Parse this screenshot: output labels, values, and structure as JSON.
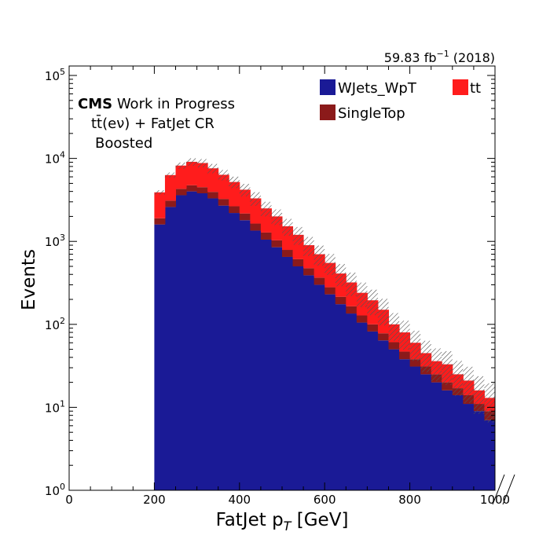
{
  "chart_data": {
    "type": "bar",
    "stacked": true,
    "histtype": "filled",
    "lumi_label": "59.83 fb",
    "lumi_exponent": "−1",
    "year_label": " (2018)",
    "cms_label": "CMS",
    "cms_sublabel": " Work in Progress",
    "region_label": "tt̄(eν) + FatJet CR",
    "category_label": "Boosted",
    "xlabel": "FatJet p",
    "xlabel_sub": "T",
    "xlabel_unit": " [GeV]",
    "ylabel": "Events",
    "xlim": [
      0,
      1000
    ],
    "ylim": [
      1,
      130000
    ],
    "yscale": "log",
    "bin_width": 25,
    "bin_edges_start": 200,
    "x_ticks": [
      "0",
      "200",
      "400",
      "600",
      "800",
      "1000"
    ],
    "y_ticks": [
      {
        "base": "10",
        "exp": "0"
      },
      {
        "base": "10",
        "exp": "1"
      },
      {
        "base": "10",
        "exp": "2"
      },
      {
        "base": "10",
        "exp": "3"
      },
      {
        "base": "10",
        "exp": "4"
      },
      {
        "base": "10",
        "exp": "5"
      }
    ],
    "legend_position": "upper-right",
    "series": [
      {
        "name": "WJets_WpT",
        "color": "#1a1a96",
        "values": [
          1600,
          2600,
          3600,
          4000,
          3800,
          3300,
          2700,
          2200,
          1800,
          1350,
          1050,
          850,
          650,
          500,
          390,
          300,
          230,
          175,
          135,
          105,
          82,
          64,
          50,
          38,
          31,
          25,
          20,
          16,
          14,
          11,
          9,
          7
        ]
      },
      {
        "name": "SingleTop",
        "color": "#8b1a1a",
        "values": [
          300,
          500,
          700,
          750,
          700,
          650,
          550,
          450,
          370,
          290,
          230,
          180,
          140,
          110,
          85,
          66,
          50,
          40,
          30,
          23,
          18,
          14,
          11,
          9,
          7,
          6,
          5,
          4,
          3,
          3,
          2,
          2
        ]
      },
      {
        "name": "tt",
        "color": "#ff1c1c",
        "values": [
          2000,
          3200,
          3900,
          4350,
          4300,
          3650,
          3100,
          2550,
          2030,
          1660,
          1220,
          970,
          730,
          590,
          425,
          334,
          270,
          195,
          155,
          112,
          95,
          72,
          39,
          33,
          22,
          14,
          11,
          13,
          8,
          7,
          5,
          4
        ]
      }
    ]
  }
}
